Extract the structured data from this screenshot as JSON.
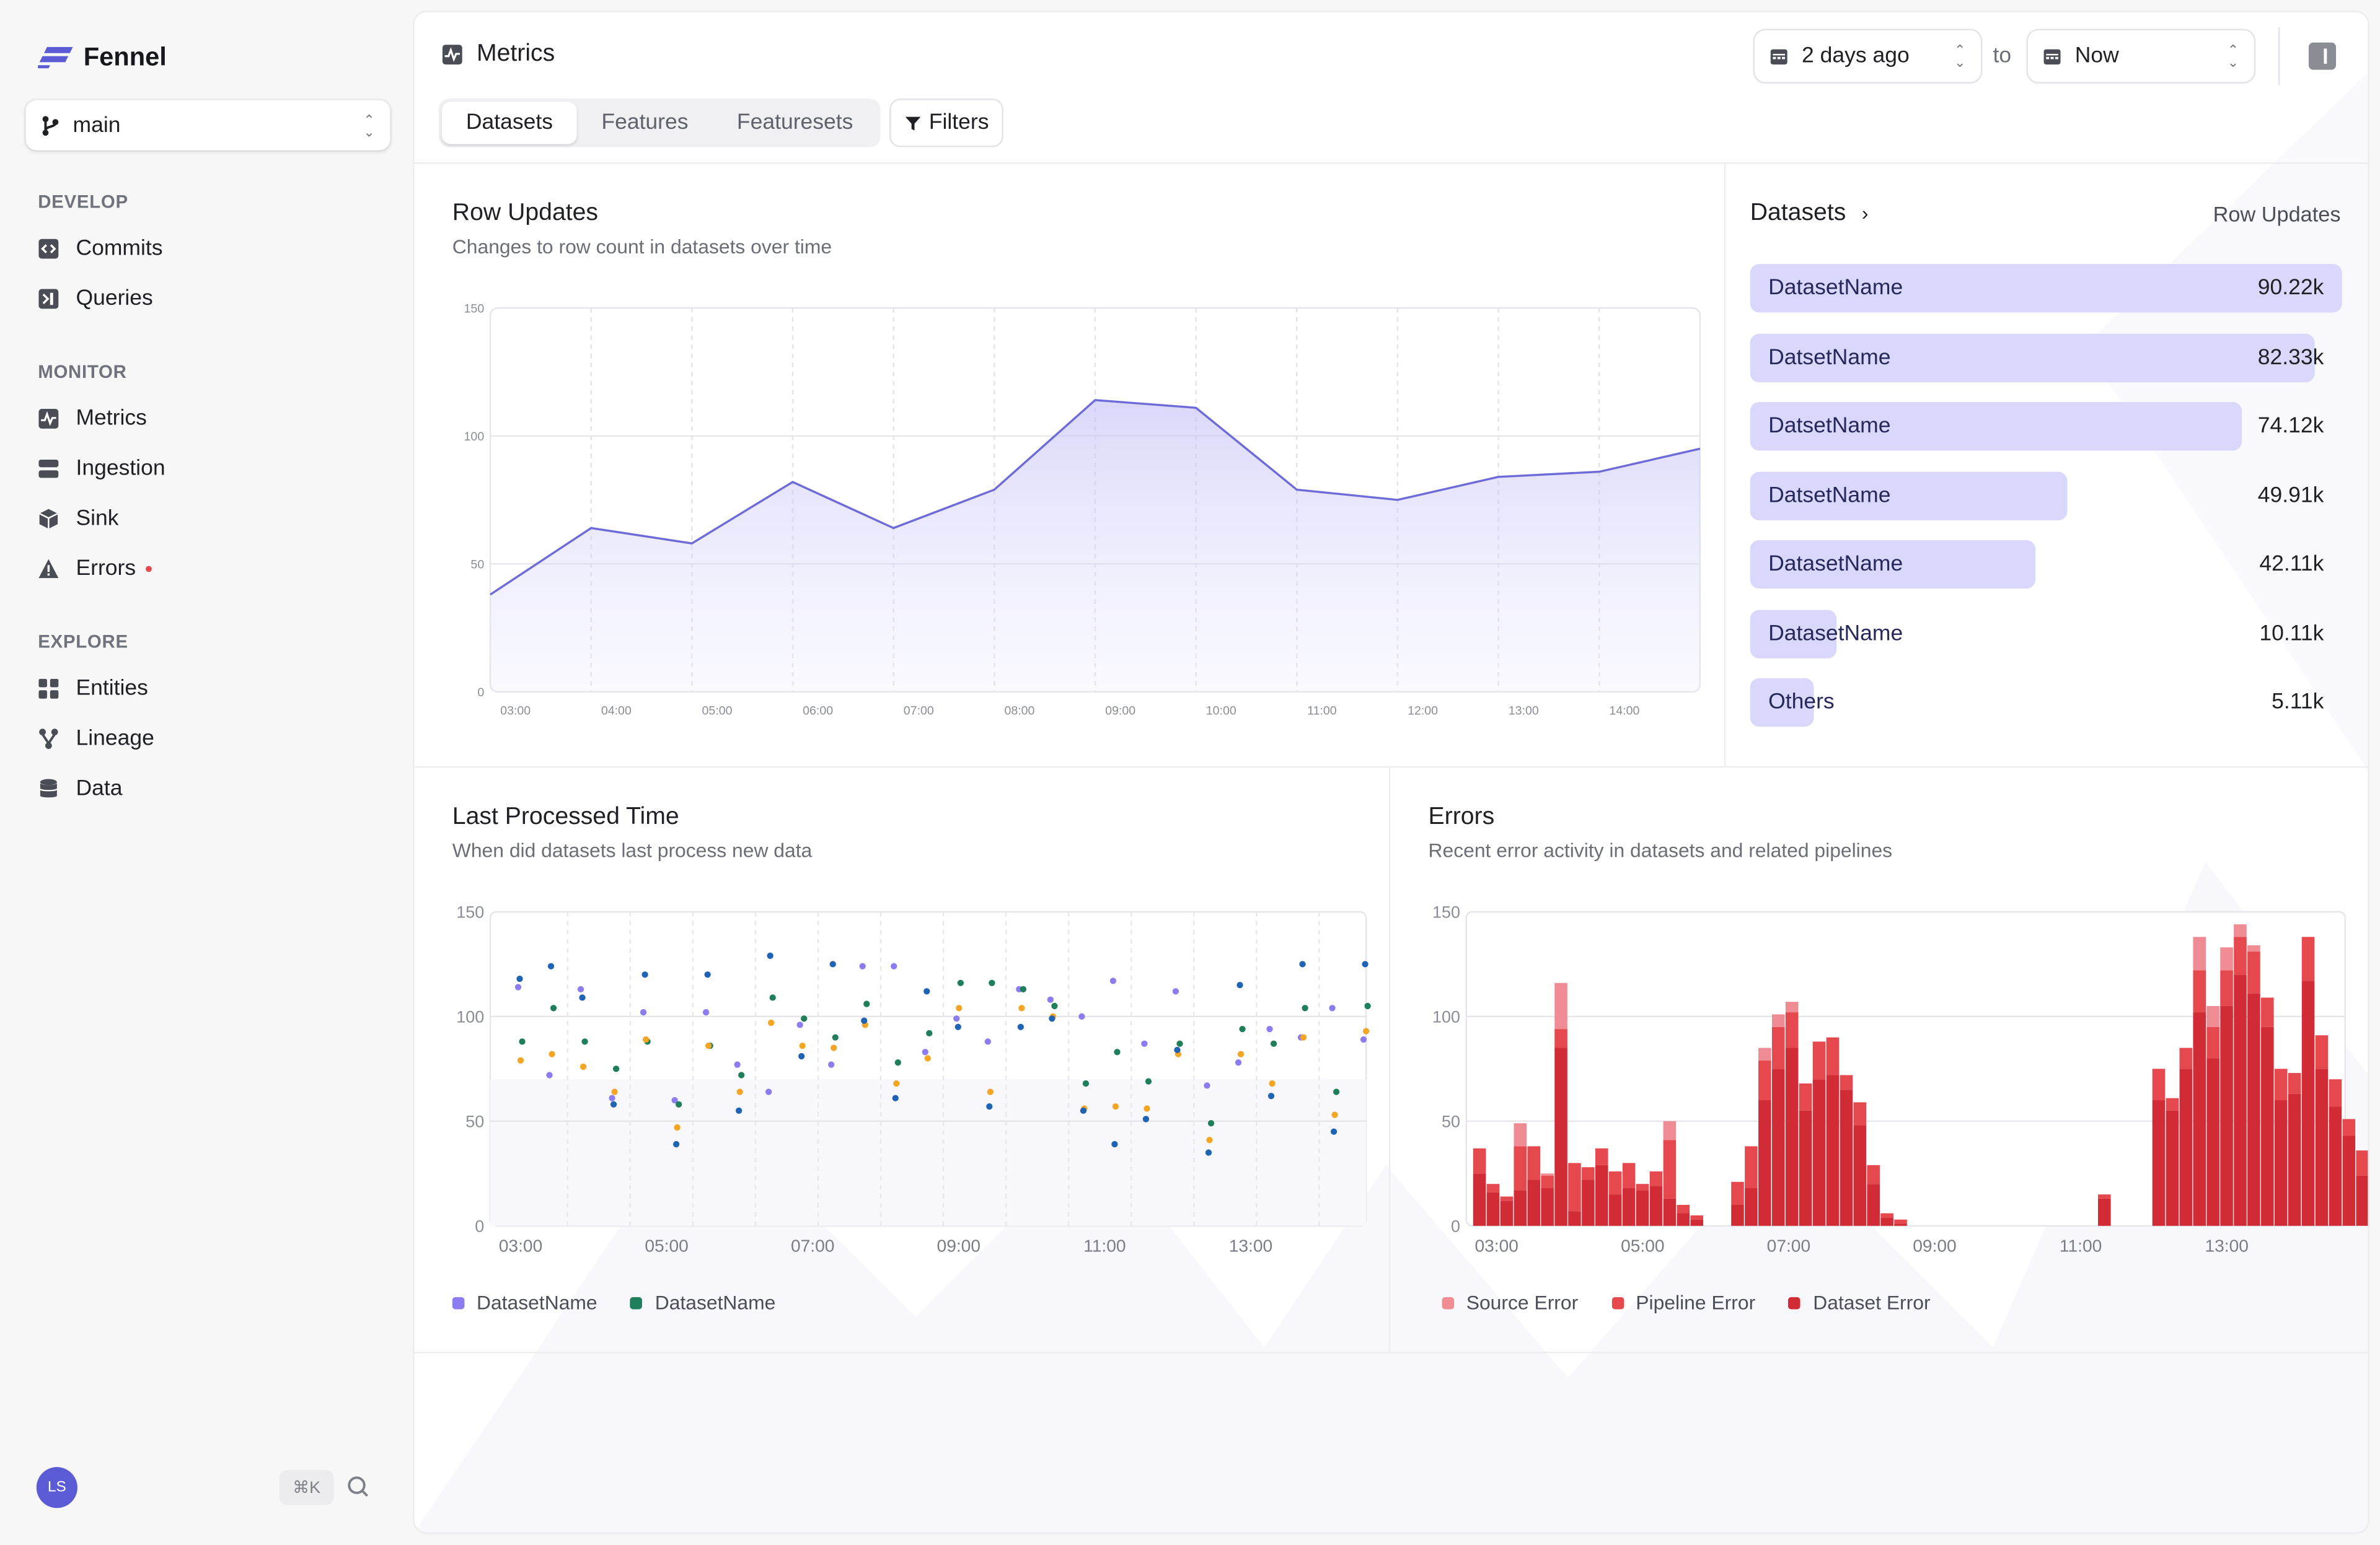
{
  "app": {
    "name": "Fennel",
    "branch": "main"
  },
  "sidebar": {
    "sections": [
      {
        "title": "DEVELOP",
        "items": [
          {
            "label": "Commits",
            "icon": "code-icon"
          },
          {
            "label": "Queries",
            "icon": "terminal-icon"
          }
        ]
      },
      {
        "title": "MONITOR",
        "items": [
          {
            "label": "Metrics",
            "icon": "activity-icon"
          },
          {
            "label": "Ingestion",
            "icon": "server-icon"
          },
          {
            "label": "Sink",
            "icon": "box-icon"
          },
          {
            "label": "Errors",
            "icon": "warning-icon",
            "indicator": true
          }
        ]
      },
      {
        "title": "EXPLORE",
        "items": [
          {
            "label": "Entities",
            "icon": "grid-icon"
          },
          {
            "label": "Lineage",
            "icon": "branch-icon"
          },
          {
            "label": "Data",
            "icon": "database-icon"
          }
        ]
      }
    ],
    "user_initials": "LS",
    "shortcut": "⌘K"
  },
  "header": {
    "title": "Metrics",
    "tabs": [
      "Datasets",
      "Features",
      "Featuresets"
    ],
    "active_tab": "Datasets",
    "filters_label": "Filters",
    "from": "2 days ago",
    "to_label": "to",
    "to": "Now"
  },
  "row_updates": {
    "title": "Row Updates",
    "subtitle": "Changes to row count in datasets over time"
  },
  "datasets_panel": {
    "title": "Datasets",
    "metric_label": "Row Updates",
    "rows": [
      {
        "name": "DatasetName",
        "value": "90.22k",
        "fraction": 1.0
      },
      {
        "name": "DatsetName",
        "value": "82.33k",
        "fraction": 0.955
      },
      {
        "name": "DatsetName",
        "value": "74.12k",
        "fraction": 0.832
      },
      {
        "name": "DatsetName",
        "value": "49.91k",
        "fraction": 0.535
      },
      {
        "name": "DatasetName",
        "value": "42.11k",
        "fraction": 0.481
      },
      {
        "name": "DatasetName",
        "value": "10.11k",
        "fraction": 0.145
      },
      {
        "name": "Others",
        "value": "5.11k",
        "fraction": 0.108
      }
    ]
  },
  "last_processed": {
    "title": "Last Processed Time",
    "subtitle": "When did datasets last process new data",
    "legend": [
      "DatasetName",
      "DatasetName"
    ]
  },
  "errors": {
    "title": "Errors",
    "subtitle": "Recent error activity in datasets and related pipelines",
    "legend": [
      "Source Error",
      "Pipeline Error",
      "Dataset Error"
    ]
  },
  "colors": {
    "accent": "#5b5bd6",
    "line": "#6e6ad8",
    "bar_fill": "#d9d8fc",
    "purple": "#8b7cf0",
    "green": "#1f7f5b",
    "orange": "#f5a524",
    "blue": "#1f63b5",
    "source_error": "#ef8b93",
    "pipeline_error": "#e5484d",
    "dataset_error": "#d12b36"
  },
  "chart_data": [
    {
      "type": "area",
      "title": "Row Updates",
      "x": [
        "02:30",
        "03:30",
        "04:30",
        "05:30",
        "06:30",
        "07:30",
        "08:30",
        "09:30",
        "10:30",
        "11:30",
        "12:30",
        "13:30",
        "14:30"
      ],
      "x_ticks": [
        "03:00",
        "04:00",
        "05:00",
        "06:00",
        "07:00",
        "08:00",
        "09:00",
        "10:00",
        "11:00",
        "12:00",
        "13:00",
        "14:00"
      ],
      "y_ticks": [
        0,
        50,
        100,
        150
      ],
      "ylim": [
        0,
        150
      ],
      "series": [
        {
          "values": [
            38,
            64,
            58,
            82,
            64,
            79,
            114,
            111,
            79,
            75,
            84,
            86,
            95
          ]
        }
      ]
    },
    {
      "type": "scatter",
      "title": "Last Processed Time",
      "x_ticks": [
        "03:00",
        "05:00",
        "07:00",
        "09:00",
        "11:00",
        "13:00"
      ],
      "y_ticks": [
        0,
        50,
        100,
        150
      ],
      "ylim": [
        0,
        150
      ],
      "x_slots": 28,
      "series": [
        {
          "name": "DatasetName",
          "color": "purple",
          "values": [
            114,
            72,
            113,
            61,
            102,
            60,
            102,
            77,
            64,
            96,
            77,
            124,
            124,
            83,
            99,
            88,
            113,
            108,
            100,
            117,
            87,
            112,
            67,
            78,
            94,
            90,
            104,
            89
          ]
        },
        {
          "name": "DatasetName",
          "color": "green",
          "values": [
            88,
            104,
            88,
            75,
            88,
            58,
            86,
            72,
            109,
            99,
            90,
            106,
            78,
            92,
            116,
            116,
            113,
            105,
            68,
            83,
            69,
            87,
            49,
            94,
            87,
            104,
            64,
            105
          ]
        },
        {
          "name": "",
          "color": "orange",
          "values": [
            79,
            82,
            76,
            64,
            89,
            47,
            86,
            64,
            97,
            86,
            85,
            96,
            68,
            80,
            104,
            64,
            104,
            100,
            56,
            57,
            56,
            82,
            41,
            82,
            68,
            90,
            53,
            93
          ]
        },
        {
          "name": "",
          "color": "blue",
          "values": [
            118,
            124,
            109,
            58,
            120,
            39,
            120,
            55,
            129,
            81,
            125,
            98,
            61,
            112,
            95,
            57,
            95,
            99,
            55,
            39,
            51,
            84,
            35,
            115,
            62,
            125,
            45,
            125
          ]
        }
      ]
    },
    {
      "type": "bar",
      "title": "Errors",
      "x_ticks": [
        "03:00",
        "05:00",
        "07:00",
        "09:00",
        "11:00",
        "13:00"
      ],
      "y_ticks": [
        0,
        50,
        100,
        150
      ],
      "ylim": [
        0,
        150
      ],
      "stacked": true,
      "series": [
        {
          "name": "Dataset Error",
          "values": [
            25,
            16,
            12,
            17,
            22,
            18,
            85,
            7,
            22,
            29,
            15,
            18,
            17,
            19,
            13,
            6,
            3,
            0,
            0,
            10,
            18,
            60,
            75,
            85,
            55,
            70,
            72,
            65,
            48,
            20,
            4,
            1,
            0,
            0,
            0,
            0,
            0,
            0,
            0,
            0,
            0,
            0,
            0,
            0,
            0,
            0,
            13,
            0,
            0,
            0,
            60,
            55,
            75,
            102,
            80,
            105,
            120,
            111,
            95,
            60,
            63,
            117,
            75,
            57,
            43,
            24,
            13
          ]
        },
        {
          "name": "Pipeline Error",
          "values": [
            12,
            4,
            2,
            21,
            16,
            6,
            9,
            23,
            6,
            8,
            11,
            12,
            3,
            7,
            28,
            4,
            2,
            0,
            0,
            11,
            20,
            19,
            20,
            17,
            13,
            18,
            18,
            7,
            11,
            9,
            2,
            2,
            0,
            0,
            0,
            0,
            0,
            0,
            0,
            0,
            0,
            0,
            0,
            0,
            0,
            0,
            2,
            0,
            0,
            0,
            15,
            6,
            10,
            20,
            15,
            17,
            18,
            20,
            14,
            15,
            10,
            21,
            16,
            13,
            8,
            12,
            12
          ]
        },
        {
          "name": "Source Error",
          "values": [
            0,
            0,
            0,
            11,
            0,
            1,
            22,
            0,
            0,
            0,
            0,
            0,
            0,
            0,
            9,
            0,
            0,
            0,
            0,
            0,
            0,
            6,
            6,
            5,
            0,
            0,
            0,
            0,
            0,
            0,
            0,
            0,
            0,
            0,
            0,
            0,
            0,
            0,
            0,
            0,
            0,
            0,
            0,
            0,
            0,
            0,
            0,
            0,
            0,
            0,
            0,
            0,
            0,
            16,
            10,
            11,
            6,
            3,
            0,
            0,
            0,
            0,
            0,
            0,
            0,
            0,
            0
          ]
        }
      ]
    }
  ]
}
